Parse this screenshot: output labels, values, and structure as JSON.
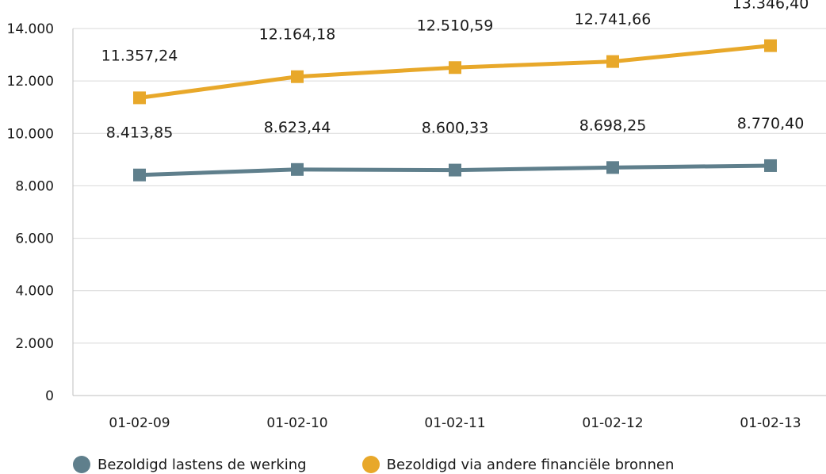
{
  "chart_data": {
    "type": "line",
    "title": "",
    "categories": [
      "01-02-09",
      "01-02-10",
      "01-02-11",
      "01-02-12",
      "01-02-13"
    ],
    "ylim": [
      0,
      14000
    ],
    "yticks": [
      0,
      2000,
      4000,
      6000,
      8000,
      10000,
      12000,
      14000
    ],
    "ytick_labels": [
      "0",
      "2.000",
      "4.000",
      "6.000",
      "8.000",
      "10.000",
      "12.000",
      "14.000"
    ],
    "grid": true,
    "legend_position": "bottom-left",
    "series": [
      {
        "name": "Bezoldigd lastens de werking",
        "color": "#5f7f8c",
        "values": [
          8413.85,
          8623.44,
          8600.33,
          8698.25,
          8770.4
        ],
        "labels": [
          "8.413,85",
          "8.623,44",
          "8.600,33",
          "8.698,25",
          "8.770,40"
        ]
      },
      {
        "name": "Bezoldigd via andere financiële bronnen",
        "color": "#e8a82a",
        "values": [
          11357.24,
          12164.18,
          12510.59,
          12741.66,
          13346.4
        ],
        "labels": [
          "11.357,24",
          "12.164,18",
          "12.510,59",
          "12.741,66",
          "13.346,40"
        ]
      }
    ]
  }
}
